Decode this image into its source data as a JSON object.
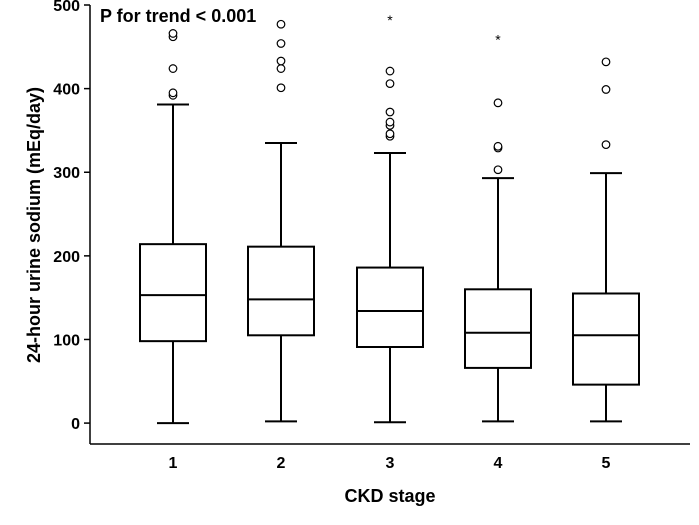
{
  "chart_data": {
    "type": "boxplot",
    "annotation": "P for trend < 0.001",
    "xlabel": "CKD stage",
    "ylabel": "24-hour urine sodium (mEq/day)",
    "ylim": [
      -25,
      500
    ],
    "yticks": [
      0,
      100,
      200,
      300,
      400,
      500
    ],
    "categories": [
      "1",
      "2",
      "3",
      "4",
      "5"
    ],
    "boxes": [
      {
        "category": "1",
        "min": 0,
        "q1": 98,
        "median": 153,
        "q3": 214,
        "max": 381,
        "outliers": [
          392,
          395,
          424,
          462,
          466
        ],
        "extremes": []
      },
      {
        "category": "2",
        "min": 2,
        "q1": 105,
        "median": 148,
        "q3": 211,
        "max": 335,
        "outliers": [
          401,
          424,
          433,
          454,
          477
        ],
        "extremes": []
      },
      {
        "category": "3",
        "min": 1,
        "q1": 91,
        "median": 134,
        "q3": 186,
        "max": 323,
        "outliers": [
          343,
          346,
          356,
          360,
          372,
          406,
          421
        ],
        "extremes": [
          483
        ]
      },
      {
        "category": "4",
        "min": 2,
        "q1": 66,
        "median": 108,
        "q3": 160,
        "max": 293,
        "outliers": [
          303,
          329,
          331,
          383
        ],
        "extremes": [
          460
        ]
      },
      {
        "category": "5",
        "min": 2,
        "q1": 46,
        "median": 105,
        "q3": 155,
        "max": 299,
        "outliers": [
          333,
          399,
          432
        ],
        "extremes": []
      }
    ]
  }
}
